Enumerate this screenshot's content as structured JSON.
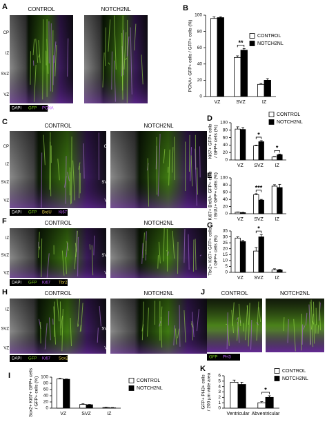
{
  "images": [
    {
      "letter": "A",
      "titles": [
        "CONTROL",
        "NOTCH2NL"
      ],
      "zones": [
        "CP",
        "IZ",
        "SVZ",
        "VZ"
      ],
      "stains": [
        {
          "text": "DAPI",
          "color": "#ffffff"
        },
        {
          "text": "GFP",
          "color": "#7fd321"
        },
        {
          "text": "PCNA",
          "color": "#c060ff"
        }
      ]
    },
    {
      "letter": "C",
      "titles": [
        "CONTROL",
        "NOTCH2NL"
      ],
      "zones": [
        "CP",
        "IZ",
        "SVZ",
        "VZ"
      ],
      "stains": [
        {
          "text": "DAPI",
          "color": "#ffffff"
        },
        {
          "text": "GFP",
          "color": "#7fd321"
        },
        {
          "text": "BrdU",
          "color": "#e8d24a"
        },
        {
          "text": "Ki67",
          "color": "#c060ff"
        }
      ]
    },
    {
      "letter": "F",
      "titles": [
        "CONTROL",
        "NOTCH2NL"
      ],
      "zones": [
        "IZ",
        "SVZ",
        "VZ"
      ],
      "stains": [
        {
          "text": "DAPI",
          "color": "#ffffff"
        },
        {
          "text": "GFP",
          "color": "#7fd321"
        },
        {
          "text": "Ki67",
          "color": "#c060ff"
        },
        {
          "text": "Tbr2",
          "color": "#e8d24a"
        }
      ]
    },
    {
      "letter": "H",
      "titles": [
        "CONTROL",
        "NOTCH2NL"
      ],
      "zones": [
        "IZ",
        "SVZ",
        "VZ"
      ],
      "stains": [
        {
          "text": "DAPI",
          "color": "#ffffff"
        },
        {
          "text": "GFP",
          "color": "#7fd321"
        },
        {
          "text": "Ki67",
          "color": "#c060ff"
        },
        {
          "text": "Sox2",
          "color": "#e8d24a"
        }
      ]
    },
    {
      "letter": "J",
      "titles": [
        "CONTROL",
        "NOTCH2NL"
      ],
      "zones": [],
      "stains": [
        {
          "text": "GFP",
          "color": "#7fd321"
        },
        {
          "text": "PH3",
          "color": "#c060ff"
        }
      ]
    }
  ],
  "chart_data": [
    {
      "type": "bar",
      "letter": "B",
      "ylabel": [
        "PCNA+ GFP+ cells / GFP+ cells (%)"
      ],
      "categories": [
        "VZ",
        "SVZ",
        "IZ"
      ],
      "ylim": [
        0,
        100
      ],
      "yticks": [
        0,
        20,
        40,
        60,
        80,
        100
      ],
      "legend": "upper right",
      "significance": [
        null,
        "**",
        null
      ],
      "series": [
        {
          "name": "CONTROL",
          "color": "#ffffff",
          "values": [
            96,
            48,
            15
          ],
          "errors": [
            2,
            2,
            1
          ]
        },
        {
          "name": "NOTCH2NL",
          "color": "#000000",
          "values": [
            97,
            57,
            20
          ],
          "errors": [
            1,
            2,
            2
          ]
        }
      ]
    },
    {
      "type": "bar",
      "letter": "D",
      "ylabel": [
        "Ki67+ GFP+ cells",
        "/ GFP+ cells (%)"
      ],
      "categories": [
        "VZ",
        "SVZ",
        "IZ"
      ],
      "ylim": [
        0,
        100
      ],
      "yticks": [
        0,
        20,
        40,
        60,
        80,
        100
      ],
      "legend": "upper right",
      "significance": [
        null,
        "*",
        "*"
      ],
      "series": [
        {
          "name": "CONTROL",
          "color": "#ffffff",
          "values": [
            83,
            38,
            8
          ],
          "errors": [
            6,
            2,
            1
          ]
        },
        {
          "name": "NOTCH2NL",
          "color": "#000000",
          "values": [
            82,
            49,
            14
          ],
          "errors": [
            5,
            3,
            2
          ]
        }
      ]
    },
    {
      "type": "bar",
      "letter": "E",
      "ylabel": [
        "Ki67+ BrdU+ GFP+ cells",
        "/ BrdU+ GFP+ cells (%)"
      ],
      "categories": [
        "VZ",
        "SVZ",
        "IZ"
      ],
      "ylim": [
        0,
        100
      ],
      "yticks": [
        0,
        20,
        40,
        60,
        80,
        100
      ],
      "significance": [
        null,
        "***",
        null
      ],
      "series": [
        {
          "color": "#ffffff",
          "values": [
            4,
            53,
            77
          ],
          "errors": [
            1,
            3,
            4
          ]
        },
        {
          "color": "#000000",
          "values": [
            3,
            38,
            73
          ],
          "errors": [
            1,
            2,
            9
          ]
        }
      ]
    },
    {
      "type": "bar",
      "letter": "G",
      "ylabel": [
        "Tbr2+ Ki67+ GFP+ cells",
        "/ GFP+ cells (%)"
      ],
      "categories": [
        "VZ",
        "SVZ",
        "IZ"
      ],
      "ylim": [
        0,
        35
      ],
      "yticks": [
        0,
        5,
        10,
        15,
        20,
        25,
        30,
        35
      ],
      "significance": [
        null,
        "*",
        null
      ],
      "series": [
        {
          "color": "#ffffff",
          "values": [
            29,
            18,
            2
          ],
          "errors": [
            1,
            3,
            1
          ]
        },
        {
          "color": "#000000",
          "values": [
            26,
            30,
            2
          ],
          "errors": [
            1,
            2,
            0.5
          ]
        }
      ]
    },
    {
      "type": "bar",
      "letter": "I",
      "ylabel": [
        "Sox2+ Ki67+ GFP+ cells",
        "/ GFP+ cells (%)"
      ],
      "categories": [
        "VZ",
        "SVZ",
        "IZ"
      ],
      "ylim": [
        0,
        100
      ],
      "yticks": [
        0,
        20,
        40,
        60,
        80,
        100
      ],
      "legend": "upper right",
      "series": [
        {
          "name": "CONTROL",
          "color": "#ffffff",
          "values": [
            94,
            12,
            2
          ],
          "errors": [
            2,
            2,
            1
          ]
        },
        {
          "name": "NOTCH2NL",
          "color": "#000000",
          "values": [
            93,
            11,
            1
          ],
          "errors": [
            1,
            1,
            1
          ]
        }
      ]
    },
    {
      "type": "bar",
      "letter": "K",
      "ylabel": [
        "GFP+ PH3+ cells",
        "/ 200 µm wide area"
      ],
      "categories": [
        "Ventricular",
        "Abventricular"
      ],
      "ylim": [
        0,
        6
      ],
      "yticks": [
        0,
        1,
        2,
        3,
        4,
        5,
        6
      ],
      "legend": "upper right",
      "significance": [
        null,
        "*"
      ],
      "series": [
        {
          "name": "CONTROL",
          "color": "#ffffff",
          "values": [
            4.8,
            1.0
          ],
          "errors": [
            0.4,
            0.2
          ]
        },
        {
          "name": "NOTCH2NL",
          "color": "#000000",
          "values": [
            4.4,
            2.0
          ],
          "errors": [
            0.4,
            0.3
          ]
        }
      ]
    }
  ]
}
